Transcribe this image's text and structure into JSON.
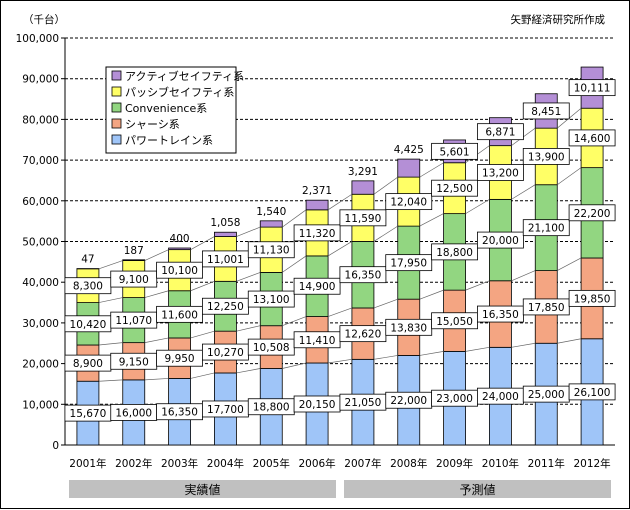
{
  "chart_data": {
    "type": "bar",
    "stacked": true,
    "unit_label": "（千台）",
    "source": "矢野経済研究所作成",
    "categories": [
      "2001年",
      "2002年",
      "2003年",
      "2004年",
      "2005年",
      "2006年",
      "2007年",
      "2008年",
      "2009年",
      "2010年",
      "2011年",
      "2012年"
    ],
    "series": [
      {
        "name": "パワートレイン系",
        "color": "#9fc5f8",
        "values": [
          15670,
          16000,
          16350,
          17700,
          18800,
          20150,
          21050,
          22000,
          23000,
          24000,
          25000,
          26100
        ]
      },
      {
        "name": "シャーシ系",
        "color": "#f4a582",
        "values": [
          8900,
          9150,
          9950,
          10270,
          10508,
          11410,
          12620,
          13830,
          15050,
          16350,
          17850,
          19850
        ]
      },
      {
        "name": "Convenience系",
        "color": "#92d681",
        "values": [
          10420,
          11070,
          11600,
          12250,
          13100,
          14900,
          16350,
          17950,
          18800,
          20000,
          21100,
          22200
        ]
      },
      {
        "name": "パッシブセイフティ系",
        "color": "#ffff66",
        "values": [
          8300,
          9100,
          10100,
          11001,
          11130,
          11320,
          11590,
          12040,
          12500,
          13200,
          13900,
          14600
        ]
      },
      {
        "name": "アクティブセイフティ系",
        "color": "#b48fd6",
        "values": [
          47,
          187,
          400,
          1058,
          1540,
          2371,
          3291,
          4425,
          5601,
          6871,
          8451,
          10111
        ]
      }
    ],
    "ylim": [
      0,
      100000
    ],
    "yticks": [
      0,
      10000,
      20000,
      30000,
      40000,
      50000,
      60000,
      70000,
      80000,
      90000,
      100000
    ],
    "ytick_labels": [
      "0",
      "10,000",
      "20,000",
      "30,000",
      "40,000",
      "50,000",
      "60,000",
      "70,000",
      "80,000",
      "90,000",
      "100,000"
    ],
    "value_labels": [
      [
        "15,670",
        "16,000",
        "16,350",
        "17,700",
        "18,800",
        "20,150",
        "21,050",
        "22,000",
        "23,000",
        "24,000",
        "25,000",
        "26,100"
      ],
      [
        "8,900",
        "9,150",
        "9,950",
        "10,270",
        "10,508",
        "11,410",
        "12,620",
        "13,830",
        "15,050",
        "16,350",
        "17,850",
        "19,850"
      ],
      [
        "10,420",
        "11,070",
        "11,600",
        "12,250",
        "13,100",
        "14,900",
        "16,350",
        "17,950",
        "18,800",
        "20,000",
        "21,100",
        "22,200"
      ],
      [
        "8,300",
        "9,100",
        "10,100",
        "11,001",
        "11,130",
        "11,320",
        "11,590",
        "12,040",
        "12,500",
        "13,200",
        "13,900",
        "14,600"
      ],
      [
        "47",
        "187",
        "400",
        "1,058",
        "1,540",
        "2,371",
        "3,291",
        "4,425",
        "5,601",
        "6,871",
        "8,451",
        "10,111"
      ]
    ],
    "grid": "dashed horizontal",
    "legend_position": "top-left",
    "phases": [
      {
        "label": "実績値",
        "from": 0,
        "to": 5
      },
      {
        "label": "予測値",
        "from": 6,
        "to": 11
      }
    ]
  }
}
